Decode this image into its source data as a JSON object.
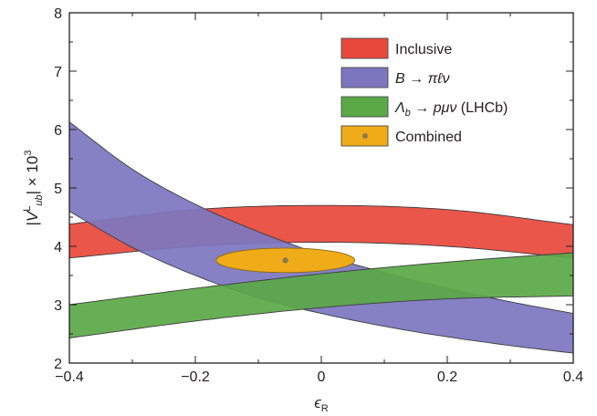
{
  "chart_data": {
    "type": "area",
    "xlabel": "ϵR",
    "ylabel": "|VLub| × 103",
    "xlim": [
      -0.4,
      0.4
    ],
    "ylim": [
      2,
      8
    ],
    "x_ticks": [
      "−0.4",
      "−0.2",
      "0",
      "0.2",
      "0.4"
    ],
    "y_ticks": [
      "2",
      "3",
      "4",
      "5",
      "6",
      "7",
      "8"
    ],
    "legend_position": "top-right",
    "series": [
      {
        "name": "Inclusive",
        "color": "#e8483b",
        "upper": {
          "x": [
            -0.4,
            -0.2,
            0.0,
            0.2,
            0.4
          ],
          "y": [
            4.38,
            4.63,
            4.7,
            4.63,
            4.37
          ]
        },
        "lower": {
          "x": [
            -0.4,
            -0.2,
            0.0,
            0.2,
            0.4
          ],
          "y": [
            3.8,
            4.0,
            4.07,
            4.0,
            3.8
          ]
        }
      },
      {
        "name": "B → πℓν",
        "color": "#7c76bf",
        "upper": {
          "x": [
            -0.4,
            -0.3,
            -0.2,
            -0.1,
            0.0,
            0.1,
            0.2,
            0.3,
            0.4
          ],
          "y": [
            6.13,
            5.32,
            4.72,
            4.25,
            3.86,
            3.55,
            3.28,
            3.05,
            2.85
          ]
        },
        "lower": {
          "x": [
            -0.4,
            -0.3,
            -0.2,
            -0.1,
            0.0,
            0.1,
            0.2,
            0.3,
            0.4
          ],
          "y": [
            4.6,
            3.98,
            3.5,
            3.12,
            2.85,
            2.63,
            2.45,
            2.3,
            2.17
          ]
        }
      },
      {
        "name": "Λb → pμν (LHCb)",
        "color": "#5aa846",
        "upper": {
          "x": [
            -0.4,
            -0.2,
            0.0,
            0.2,
            0.4
          ],
          "y": [
            3.0,
            3.28,
            3.53,
            3.73,
            3.89
          ]
        },
        "lower": {
          "x": [
            -0.4,
            -0.2,
            0.0,
            0.2,
            0.4
          ],
          "y": [
            2.43,
            2.72,
            2.95,
            3.1,
            3.15
          ]
        }
      }
    ],
    "combined": {
      "name": "Combined",
      "color": "#f0ab18",
      "center": {
        "x": -0.057,
        "y": 3.76
      },
      "x_range": [
        -0.167,
        0.053
      ],
      "y_range": [
        3.55,
        3.97
      ]
    }
  }
}
